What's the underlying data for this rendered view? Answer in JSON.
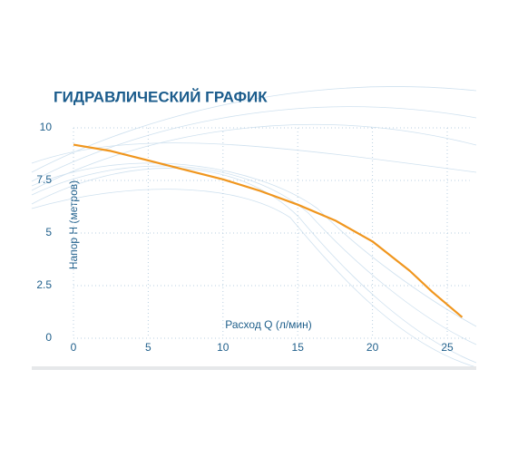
{
  "chart_data": {
    "type": "line",
    "title": "ГИДРАВЛИЧЕСКИЙ ГРАФИК",
    "x_label": "Расход Q (л/мин)",
    "y_label": "Напор H (метров)",
    "x": [
      0,
      2.5,
      5,
      7.5,
      10,
      12.5,
      15,
      17.5,
      20,
      22.5,
      24,
      26
    ],
    "series": [
      {
        "name": "H",
        "color": "#f0961e",
        "values": [
          9.2,
          8.9,
          8.45,
          8.0,
          7.55,
          7.0,
          6.35,
          5.6,
          4.6,
          3.2,
          2.2,
          1.0
        ]
      }
    ],
    "xlim": [
      0,
      26.5
    ],
    "ylim": [
      0,
      10
    ],
    "xticks": [
      0,
      5,
      10,
      15,
      20,
      25
    ],
    "yticks": [
      0,
      2.5,
      5,
      7.5,
      10
    ],
    "grid": true
  }
}
